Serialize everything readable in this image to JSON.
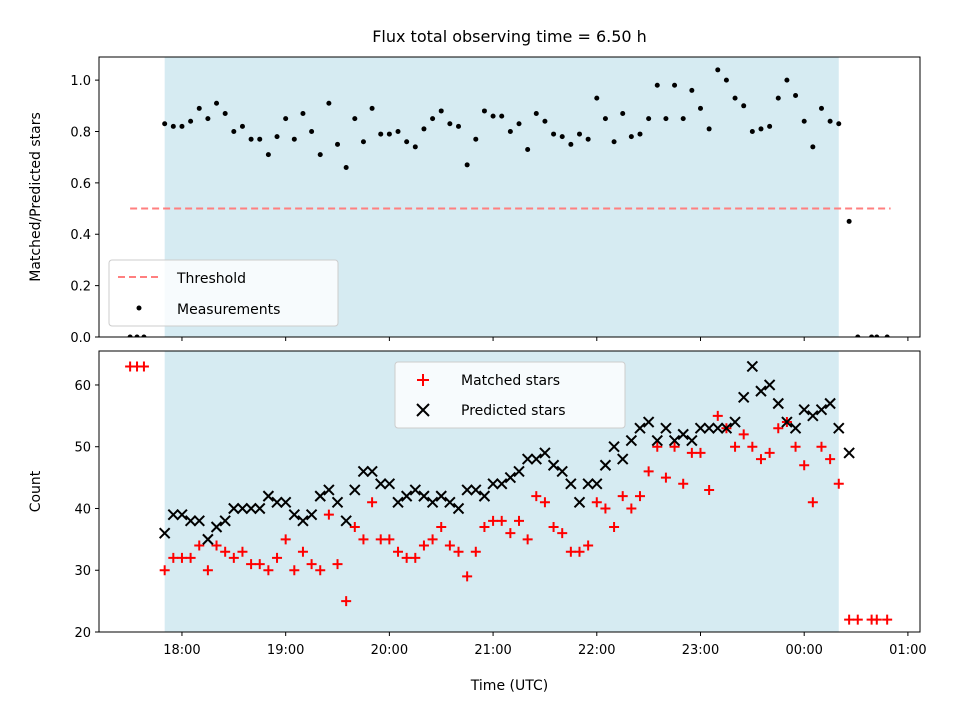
{
  "title": "Flux total observing time = 6.50 h",
  "chart_data": [
    {
      "type": "scatter",
      "ylabel": "Matched/Predicted stars",
      "ylim": [
        0,
        1.09
      ],
      "yticks": [
        "0.0",
        "0.2",
        "0.4",
        "0.6",
        "0.8",
        "1.0"
      ],
      "xlim": [
        "17:12",
        "01:07"
      ],
      "observing_window": [
        "17:50",
        "00:20"
      ],
      "grid": false,
      "legend": {
        "position": "lower-left",
        "entries": [
          "Threshold",
          "Measurements"
        ]
      },
      "threshold": {
        "name": "Threshold",
        "value": 0.5,
        "x": [
          "17:30",
          "00:50"
        ],
        "color": "#ff7f7f"
      },
      "series": [
        {
          "name": "Measurements",
          "color": "#000000",
          "points": [
            [
              "17:30",
              0.0
            ],
            [
              "17:34",
              0.0
            ],
            [
              "17:38",
              0.0
            ],
            [
              "17:50",
              0.83
            ],
            [
              "17:55",
              0.82
            ],
            [
              "18:00",
              0.82
            ],
            [
              "18:05",
              0.84
            ],
            [
              "18:10",
              0.89
            ],
            [
              "18:15",
              0.85
            ],
            [
              "18:20",
              0.91
            ],
            [
              "18:25",
              0.87
            ],
            [
              "18:30",
              0.8
            ],
            [
              "18:35",
              0.82
            ],
            [
              "18:40",
              0.77
            ],
            [
              "18:45",
              0.77
            ],
            [
              "18:50",
              0.71
            ],
            [
              "18:55",
              0.78
            ],
            [
              "19:00",
              0.85
            ],
            [
              "19:05",
              0.77
            ],
            [
              "19:10",
              0.87
            ],
            [
              "19:15",
              0.8
            ],
            [
              "19:20",
              0.71
            ],
            [
              "19:25",
              0.91
            ],
            [
              "19:30",
              0.75
            ],
            [
              "19:35",
              0.66
            ],
            [
              "19:40",
              0.85
            ],
            [
              "19:45",
              0.76
            ],
            [
              "19:50",
              0.89
            ],
            [
              "19:55",
              0.79
            ],
            [
              "20:00",
              0.79
            ],
            [
              "20:05",
              0.8
            ],
            [
              "20:10",
              0.76
            ],
            [
              "20:15",
              0.74
            ],
            [
              "20:20",
              0.81
            ],
            [
              "20:25",
              0.85
            ],
            [
              "20:30",
              0.88
            ],
            [
              "20:35",
              0.83
            ],
            [
              "20:40",
              0.82
            ],
            [
              "20:45",
              0.67
            ],
            [
              "20:50",
              0.77
            ],
            [
              "20:55",
              0.88
            ],
            [
              "21:00",
              0.86
            ],
            [
              "21:05",
              0.86
            ],
            [
              "21:10",
              0.8
            ],
            [
              "21:15",
              0.83
            ],
            [
              "21:20",
              0.73
            ],
            [
              "21:25",
              0.87
            ],
            [
              "21:30",
              0.84
            ],
            [
              "21:35",
              0.79
            ],
            [
              "21:40",
              0.78
            ],
            [
              "21:45",
              0.75
            ],
            [
              "21:50",
              0.79
            ],
            [
              "21:55",
              0.77
            ],
            [
              "22:00",
              0.93
            ],
            [
              "22:05",
              0.85
            ],
            [
              "22:10",
              0.76
            ],
            [
              "22:15",
              0.87
            ],
            [
              "22:20",
              0.78
            ],
            [
              "22:25",
              0.79
            ],
            [
              "22:30",
              0.85
            ],
            [
              "22:35",
              0.98
            ],
            [
              "22:40",
              0.85
            ],
            [
              "22:45",
              0.98
            ],
            [
              "22:50",
              0.85
            ],
            [
              "22:55",
              0.96
            ],
            [
              "23:00",
              0.89
            ],
            [
              "23:05",
              0.81
            ],
            [
              "23:10",
              1.04
            ],
            [
              "23:15",
              1.0
            ],
            [
              "23:20",
              0.93
            ],
            [
              "23:25",
              0.9
            ],
            [
              "23:30",
              0.8
            ],
            [
              "23:35",
              0.81
            ],
            [
              "23:40",
              0.82
            ],
            [
              "23:45",
              0.93
            ],
            [
              "23:50",
              1.0
            ],
            [
              "23:55",
              0.94
            ],
            [
              "00:00",
              0.84
            ],
            [
              "00:05",
              0.74
            ],
            [
              "00:10",
              0.89
            ],
            [
              "00:15",
              0.84
            ],
            [
              "00:20",
              0.83
            ],
            [
              "00:26",
              0.45
            ],
            [
              "00:31",
              0.0
            ],
            [
              "00:39",
              0.0
            ],
            [
              "00:42",
              0.0
            ],
            [
              "00:48",
              0.0
            ]
          ]
        }
      ]
    },
    {
      "type": "scatter",
      "xlabel": "Time (UTC)",
      "ylabel": "Count",
      "ylim": [
        20,
        65.5
      ],
      "yticks": [
        "20",
        "30",
        "40",
        "50",
        "60"
      ],
      "xlim": [
        "17:12",
        "01:07"
      ],
      "xticks": [
        "18:00",
        "19:00",
        "20:00",
        "21:00",
        "22:00",
        "23:00",
        "00:00",
        "01:00"
      ],
      "observing_window": [
        "17:50",
        "00:20"
      ],
      "grid": false,
      "legend": {
        "position": "top-center",
        "entries": [
          "Matched stars",
          "Predicted stars"
        ]
      },
      "series": [
        {
          "name": "Matched stars",
          "marker": "plus",
          "color": "#ff0000",
          "points": [
            [
              "17:30",
              63
            ],
            [
              "17:34",
              63
            ],
            [
              "17:38",
              63
            ],
            [
              "17:50",
              30
            ],
            [
              "17:55",
              32
            ],
            [
              "18:00",
              32
            ],
            [
              "18:05",
              32
            ],
            [
              "18:10",
              34
            ],
            [
              "18:15",
              30
            ],
            [
              "18:20",
              34
            ],
            [
              "18:25",
              33
            ],
            [
              "18:30",
              32
            ],
            [
              "18:35",
              33
            ],
            [
              "18:40",
              31
            ],
            [
              "18:45",
              31
            ],
            [
              "18:50",
              30
            ],
            [
              "18:55",
              32
            ],
            [
              "19:00",
              35
            ],
            [
              "19:05",
              30
            ],
            [
              "19:10",
              33
            ],
            [
              "19:15",
              31
            ],
            [
              "19:20",
              30
            ],
            [
              "19:25",
              39
            ],
            [
              "19:30",
              31
            ],
            [
              "19:35",
              25
            ],
            [
              "19:40",
              37
            ],
            [
              "19:45",
              35
            ],
            [
              "19:50",
              41
            ],
            [
              "19:55",
              35
            ],
            [
              "20:00",
              35
            ],
            [
              "20:05",
              33
            ],
            [
              "20:10",
              32
            ],
            [
              "20:15",
              32
            ],
            [
              "20:20",
              34
            ],
            [
              "20:25",
              35
            ],
            [
              "20:30",
              37
            ],
            [
              "20:35",
              34
            ],
            [
              "20:40",
              33
            ],
            [
              "20:45",
              29
            ],
            [
              "20:50",
              33
            ],
            [
              "20:55",
              37
            ],
            [
              "21:00",
              38
            ],
            [
              "21:05",
              38
            ],
            [
              "21:10",
              36
            ],
            [
              "21:15",
              38
            ],
            [
              "21:20",
              35
            ],
            [
              "21:25",
              42
            ],
            [
              "21:30",
              41
            ],
            [
              "21:35",
              37
            ],
            [
              "21:40",
              36
            ],
            [
              "21:45",
              33
            ],
            [
              "21:50",
              33
            ],
            [
              "21:55",
              34
            ],
            [
              "22:00",
              41
            ],
            [
              "22:05",
              40
            ],
            [
              "22:10",
              37
            ],
            [
              "22:15",
              42
            ],
            [
              "22:20",
              40
            ],
            [
              "22:25",
              42
            ],
            [
              "22:30",
              46
            ],
            [
              "22:35",
              50
            ],
            [
              "22:40",
              45
            ],
            [
              "22:45",
              50
            ],
            [
              "22:50",
              44
            ],
            [
              "22:55",
              49
            ],
            [
              "23:00",
              49
            ],
            [
              "23:05",
              43
            ],
            [
              "23:10",
              55
            ],
            [
              "23:15",
              53
            ],
            [
              "23:20",
              50
            ],
            [
              "23:25",
              52
            ],
            [
              "23:30",
              50
            ],
            [
              "23:35",
              48
            ],
            [
              "23:40",
              49
            ],
            [
              "23:45",
              53
            ],
            [
              "23:50",
              54
            ],
            [
              "23:55",
              50
            ],
            [
              "00:00",
              47
            ],
            [
              "00:05",
              41
            ],
            [
              "00:10",
              50
            ],
            [
              "00:15",
              48
            ],
            [
              "00:20",
              44
            ],
            [
              "00:26",
              22
            ],
            [
              "00:31",
              22
            ],
            [
              "00:39",
              22
            ],
            [
              "00:42",
              22
            ],
            [
              "00:48",
              22
            ]
          ]
        },
        {
          "name": "Predicted stars",
          "marker": "x",
          "color": "#000000",
          "points": [
            [
              "17:50",
              36
            ],
            [
              "17:55",
              39
            ],
            [
              "18:00",
              39
            ],
            [
              "18:05",
              38
            ],
            [
              "18:10",
              38
            ],
            [
              "18:15",
              35
            ],
            [
              "18:20",
              37
            ],
            [
              "18:25",
              38
            ],
            [
              "18:30",
              40
            ],
            [
              "18:35",
              40
            ],
            [
              "18:40",
              40
            ],
            [
              "18:45",
              40
            ],
            [
              "18:50",
              42
            ],
            [
              "18:55",
              41
            ],
            [
              "19:00",
              41
            ],
            [
              "19:05",
              39
            ],
            [
              "19:10",
              38
            ],
            [
              "19:15",
              39
            ],
            [
              "19:20",
              42
            ],
            [
              "19:25",
              43
            ],
            [
              "19:30",
              41
            ],
            [
              "19:35",
              38
            ],
            [
              "19:40",
              43
            ],
            [
              "19:45",
              46
            ],
            [
              "19:50",
              46
            ],
            [
              "19:55",
              44
            ],
            [
              "20:00",
              44
            ],
            [
              "20:05",
              41
            ],
            [
              "20:10",
              42
            ],
            [
              "20:15",
              43
            ],
            [
              "20:20",
              42
            ],
            [
              "20:25",
              41
            ],
            [
              "20:30",
              42
            ],
            [
              "20:35",
              41
            ],
            [
              "20:40",
              40
            ],
            [
              "20:45",
              43
            ],
            [
              "20:50",
              43
            ],
            [
              "20:55",
              42
            ],
            [
              "21:00",
              44
            ],
            [
              "21:05",
              44
            ],
            [
              "21:10",
              45
            ],
            [
              "21:15",
              46
            ],
            [
              "21:20",
              48
            ],
            [
              "21:25",
              48
            ],
            [
              "21:30",
              49
            ],
            [
              "21:35",
              47
            ],
            [
              "21:40",
              46
            ],
            [
              "21:45",
              44
            ],
            [
              "21:50",
              41
            ],
            [
              "21:55",
              44
            ],
            [
              "22:00",
              44
            ],
            [
              "22:05",
              47
            ],
            [
              "22:10",
              50
            ],
            [
              "22:15",
              48
            ],
            [
              "22:20",
              51
            ],
            [
              "22:25",
              53
            ],
            [
              "22:30",
              54
            ],
            [
              "22:35",
              51
            ],
            [
              "22:40",
              53
            ],
            [
              "22:45",
              51
            ],
            [
              "22:50",
              52
            ],
            [
              "22:55",
              51
            ],
            [
              "23:00",
              53
            ],
            [
              "23:05",
              53
            ],
            [
              "23:10",
              53
            ],
            [
              "23:15",
              53
            ],
            [
              "23:20",
              54
            ],
            [
              "23:25",
              58
            ],
            [
              "23:30",
              63
            ],
            [
              "23:35",
              59
            ],
            [
              "23:40",
              60
            ],
            [
              "23:45",
              57
            ],
            [
              "23:50",
              54
            ],
            [
              "23:55",
              53
            ],
            [
              "00:00",
              56
            ],
            [
              "00:05",
              55
            ],
            [
              "00:10",
              56
            ],
            [
              "00:15",
              57
            ],
            [
              "00:20",
              53
            ],
            [
              "00:26",
              49
            ]
          ]
        }
      ]
    }
  ]
}
